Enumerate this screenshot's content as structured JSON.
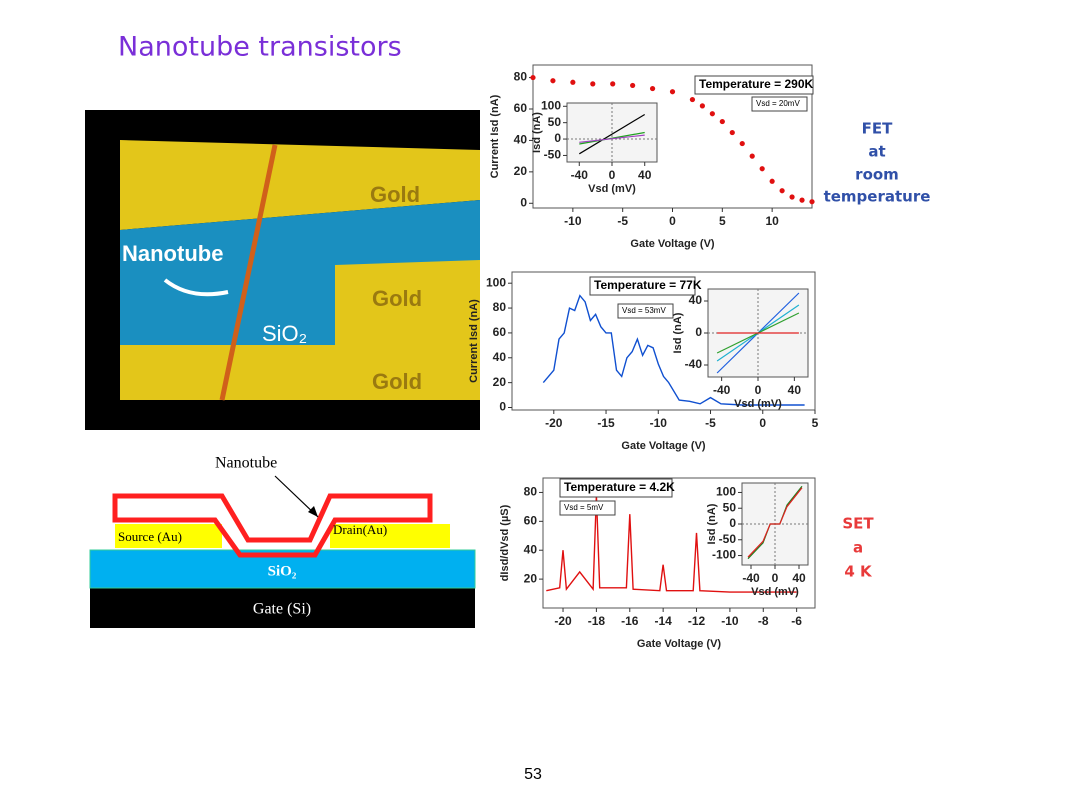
{
  "slide": {
    "title": "Nanotube transistors",
    "page_number": "53",
    "fet_label": [
      "FET",
      "at",
      "room",
      "temperature"
    ],
    "set_label": [
      "SET",
      "a",
      "4 K"
    ],
    "photo": {
      "labels": [
        "Gold",
        "Nanotube",
        "SiO₂",
        "Gold",
        "Gold"
      ]
    },
    "diagram": {
      "nanotube": "Nanotube",
      "source": "Source (Au)",
      "drain": "Drain(Au)",
      "oxide": "SiO₂",
      "gate": "Gate (Si)"
    }
  },
  "chart_data": [
    {
      "type": "scatter",
      "xlabel": "Gate Voltage (V)",
      "ylabel": "Current Isd (nA)",
      "annotations": [
        "Temperature = 290K",
        "Vsd = 20mV"
      ],
      "x": [
        -14,
        -12,
        -10,
        -8,
        -6,
        -4,
        -2,
        0,
        2,
        3,
        4,
        5,
        6,
        7,
        8,
        9,
        10,
        11,
        12,
        13,
        14
      ],
      "series": [
        {
          "color": "#e01010",
          "values": [
            80,
            78,
            77,
            76,
            76,
            75,
            73,
            71,
            66,
            62,
            57,
            52,
            45,
            38,
            30,
            22,
            14,
            8,
            4,
            2,
            1
          ]
        }
      ],
      "xlim": [
        -14,
        14
      ],
      "xticks": [
        -10,
        -5,
        0,
        5,
        10
      ],
      "ylim": [
        -3,
        88
      ],
      "yticks": [
        0,
        20,
        40,
        60,
        80
      ],
      "inset": {
        "type": "line",
        "xlabel": "Vsd (mV)",
        "ylabel": "Isd (nA)",
        "x": [
          -40,
          40
        ],
        "series": [
          {
            "color": "#000000",
            "values": [
              -45,
              75
            ]
          },
          {
            "color": "#20a020",
            "values": [
              -15,
              20
            ]
          },
          {
            "color": "#a040c0",
            "values": [
              -10,
              12
            ]
          }
        ],
        "xlim": [
          -55,
          55
        ],
        "xticks": [
          -40,
          0,
          40
        ],
        "ylim": [
          -70,
          110
        ],
        "yticks": [
          -50,
          0,
          50,
          100
        ]
      }
    },
    {
      "type": "line",
      "xlabel": "Gate Voltage (V)",
      "ylabel": "Current Isd (nA)",
      "annotations": [
        "Temperature = 77K",
        "Vsd = 53mV"
      ],
      "x": [
        -21,
        -20,
        -19.5,
        -19,
        -18.5,
        -18,
        -17.5,
        -17,
        -16.5,
        -16,
        -15.5,
        -15,
        -14.5,
        -14,
        -13.5,
        -13,
        -12.5,
        -12,
        -11.5,
        -11,
        -10.5,
        -10,
        -9.5,
        -9,
        -8,
        -7,
        -6,
        -5,
        -4,
        -2,
        0,
        2,
        4
      ],
      "series": [
        {
          "color": "#1050d0",
          "values": [
            20,
            30,
            55,
            60,
            80,
            78,
            90,
            85,
            70,
            75,
            65,
            60,
            60,
            30,
            25,
            40,
            45,
            55,
            42,
            50,
            48,
            35,
            25,
            20,
            6,
            5,
            3,
            8,
            3,
            2,
            2,
            2,
            2
          ]
        }
      ],
      "xlim": [
        -24,
        5
      ],
      "xticks": [
        -20,
        -15,
        -10,
        -5,
        0,
        5
      ],
      "ylim": [
        -2,
        109
      ],
      "yticks": [
        0,
        20,
        40,
        60,
        80,
        100
      ],
      "inset": {
        "type": "line",
        "xlabel": "Vsd (mV)",
        "ylabel": "Isd (nA)",
        "x": [
          -45,
          45
        ],
        "series": [
          {
            "color": "#2060e0",
            "values": [
              -50,
              50
            ]
          },
          {
            "color": "#20b0d0",
            "values": [
              -35,
              35
            ]
          },
          {
            "color": "#30a030",
            "values": [
              -25,
              25
            ]
          },
          {
            "color": "#e02020",
            "values": [
              0,
              0
            ]
          }
        ],
        "xlim": [
          -55,
          55
        ],
        "xticks": [
          -40,
          0,
          40
        ],
        "ylim": [
          -55,
          55
        ],
        "yticks": [
          -40,
          0,
          40
        ]
      }
    },
    {
      "type": "line",
      "xlabel": "Gate Voltage (V)",
      "ylabel": "dIsd/dVsd (µS)",
      "annotations": [
        "Temperature = 4.2K",
        "Vsd = 5mV"
      ],
      "x": [
        -21,
        -20.2,
        -20,
        -19.8,
        -19,
        -18.2,
        -18,
        -17.8,
        -16.2,
        -16,
        -15.8,
        -14.2,
        -14,
        -13.8,
        -12.2,
        -12,
        -11.8,
        -10,
        -8,
        -6
      ],
      "series": [
        {
          "color": "#e01010",
          "values": [
            12,
            14,
            40,
            13,
            25,
            13,
            78,
            14,
            14,
            65,
            13,
            12,
            30,
            12,
            12,
            52,
            12,
            11,
            11,
            11
          ]
        }
      ],
      "xlim": [
        -21.2,
        -4.9
      ],
      "xticks": [
        -20,
        -18,
        -16,
        -14,
        -12,
        -10,
        -8,
        -6
      ],
      "ylim": [
        0,
        90
      ],
      "yticks": [
        20,
        40,
        60,
        80
      ],
      "inset": {
        "type": "line",
        "xlabel": "Vsd (mV)",
        "ylabel": "Isd (nA)",
        "x": [
          -45,
          -20,
          -8,
          8,
          20,
          45
        ],
        "series": [
          {
            "color": "#208020",
            "values": [
              -110,
              -60,
              0,
              0,
              60,
              120
            ]
          },
          {
            "color": "#e02020",
            "values": [
              -105,
              -55,
              0,
              0,
              55,
              115
            ]
          }
        ],
        "xlim": [
          -55,
          55
        ],
        "xticks": [
          -40,
          0,
          40
        ],
        "ylim": [
          -130,
          130
        ],
        "yticks": [
          -100,
          -50,
          0,
          50,
          100
        ]
      }
    }
  ]
}
